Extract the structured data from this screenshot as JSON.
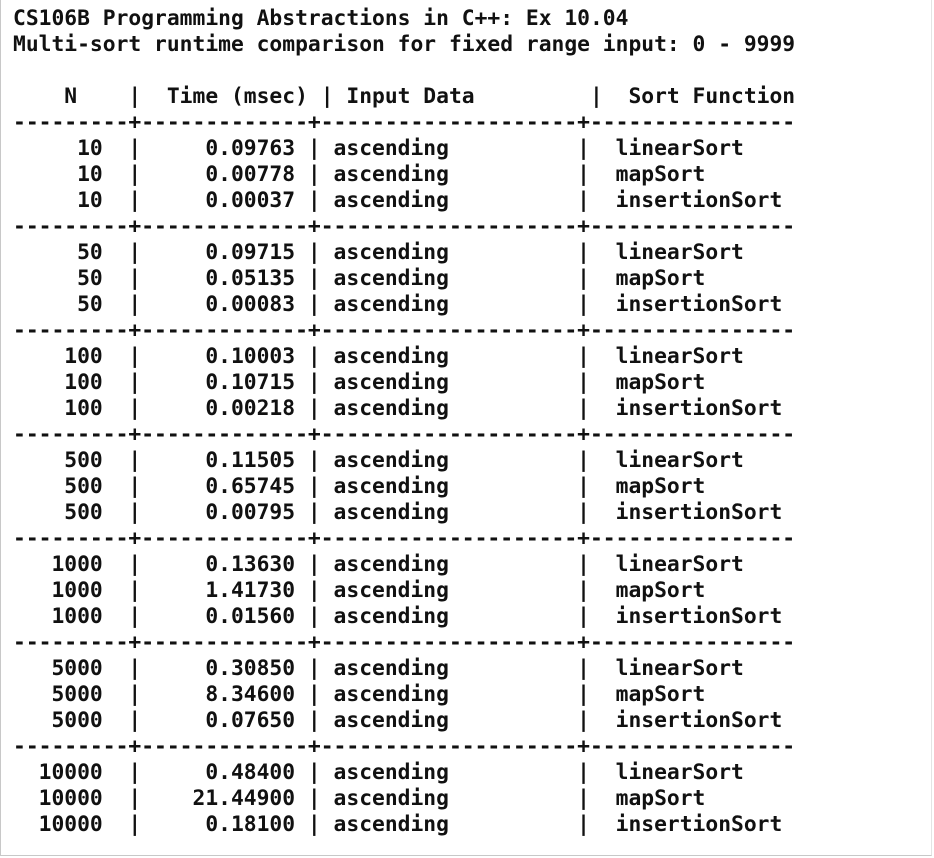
{
  "title_lines": [
    "CS106B Programming Abstractions in C++: Ex 10.04",
    "Multi-sort runtime comparison for fixed range input: 0 - 9999"
  ],
  "header": {
    "n": "N",
    "time": "Time (msec)",
    "input": "Input Data",
    "func": "Sort Function"
  },
  "separator": "---------+-------------+--------------------+----------------",
  "groups": [
    {
      "rows": [
        {
          "n": "10",
          "time": "0.09763",
          "input": "ascending",
          "func": "linearSort"
        },
        {
          "n": "10",
          "time": "0.00778",
          "input": "ascending",
          "func": "mapSort"
        },
        {
          "n": "10",
          "time": "0.00037",
          "input": "ascending",
          "func": "insertionSort"
        }
      ]
    },
    {
      "rows": [
        {
          "n": "50",
          "time": "0.09715",
          "input": "ascending",
          "func": "linearSort"
        },
        {
          "n": "50",
          "time": "0.05135",
          "input": "ascending",
          "func": "mapSort"
        },
        {
          "n": "50",
          "time": "0.00083",
          "input": "ascending",
          "func": "insertionSort"
        }
      ]
    },
    {
      "rows": [
        {
          "n": "100",
          "time": "0.10003",
          "input": "ascending",
          "func": "linearSort"
        },
        {
          "n": "100",
          "time": "0.10715",
          "input": "ascending",
          "func": "mapSort"
        },
        {
          "n": "100",
          "time": "0.00218",
          "input": "ascending",
          "func": "insertionSort"
        }
      ]
    },
    {
      "rows": [
        {
          "n": "500",
          "time": "0.11505",
          "input": "ascending",
          "func": "linearSort"
        },
        {
          "n": "500",
          "time": "0.65745",
          "input": "ascending",
          "func": "mapSort"
        },
        {
          "n": "500",
          "time": "0.00795",
          "input": "ascending",
          "func": "insertionSort"
        }
      ]
    },
    {
      "rows": [
        {
          "n": "1000",
          "time": "0.13630",
          "input": "ascending",
          "func": "linearSort"
        },
        {
          "n": "1000",
          "time": "1.41730",
          "input": "ascending",
          "func": "mapSort"
        },
        {
          "n": "1000",
          "time": "0.01560",
          "input": "ascending",
          "func": "insertionSort"
        }
      ]
    },
    {
      "rows": [
        {
          "n": "5000",
          "time": "0.30850",
          "input": "ascending",
          "func": "linearSort"
        },
        {
          "n": "5000",
          "time": "8.34600",
          "input": "ascending",
          "func": "mapSort"
        },
        {
          "n": "5000",
          "time": "0.07650",
          "input": "ascending",
          "func": "insertionSort"
        }
      ]
    },
    {
      "rows": [
        {
          "n": "10000",
          "time": "0.48400",
          "input": "ascending",
          "func": "linearSort"
        },
        {
          "n": "10000",
          "time": "21.44900",
          "input": "ascending",
          "func": "mapSort"
        },
        {
          "n": "10000",
          "time": "0.18100",
          "input": "ascending",
          "func": "insertionSort"
        }
      ]
    }
  ]
}
